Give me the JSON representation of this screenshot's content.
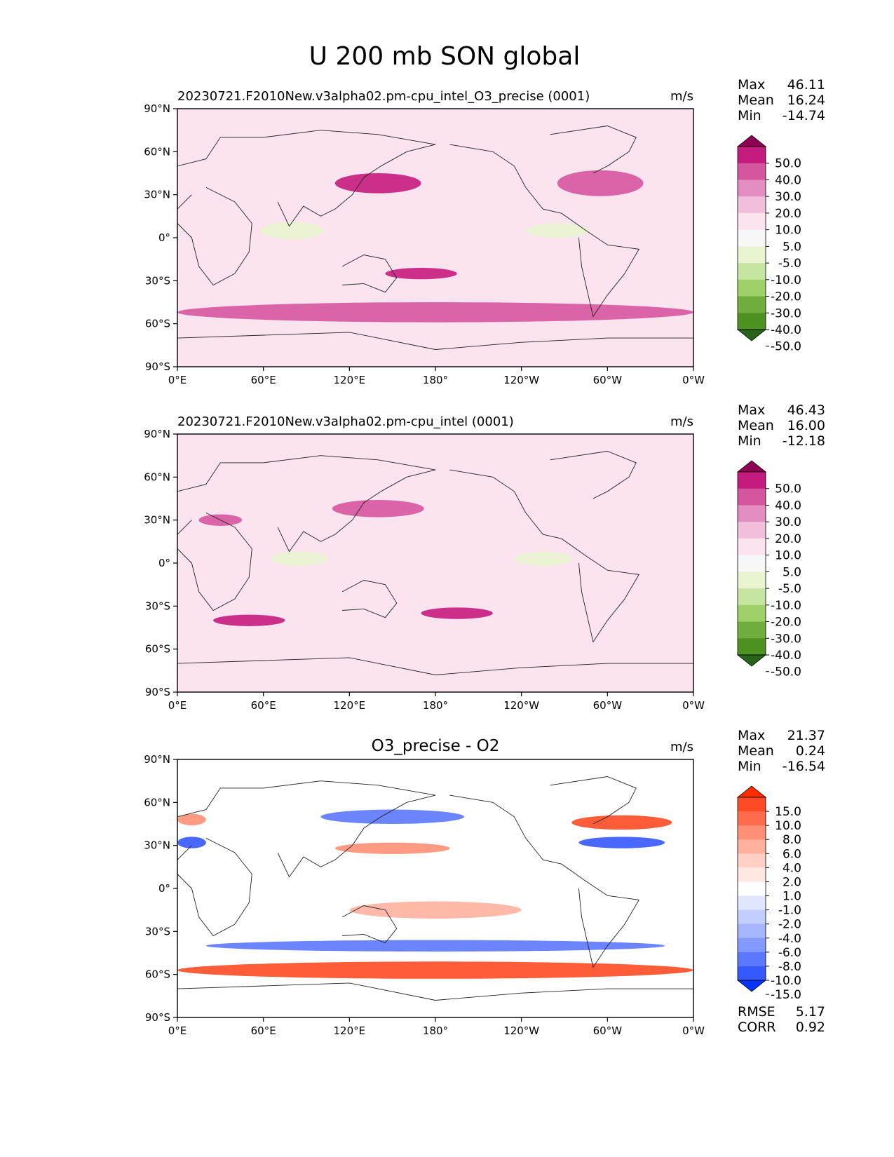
{
  "figure": {
    "title": "U 200 mb SON global"
  },
  "axes": {
    "x_ticks": [
      "0°E",
      "60°E",
      "120°E",
      "180°",
      "120°W",
      "60°W",
      "0°W"
    ],
    "y_ticks": [
      "90°N",
      "60°N",
      "30°N",
      "0°",
      "30°S",
      "60°S",
      "90°S"
    ]
  },
  "stat_labels": {
    "max": "Max",
    "mean": "Mean",
    "min": "Min",
    "rmse": "RMSE",
    "corr": "CORR"
  },
  "panels": [
    {
      "title": "20230721.F2010New.v3alpha02.pm-cpu_intel_O3_precise (0001)",
      "units": "m/s",
      "stats": {
        "max": "46.11",
        "mean": "16.24",
        "min": "-14.74"
      },
      "colorbar": {
        "labels": [
          "50.0",
          "40.0",
          "30.0",
          "20.0",
          "10.0",
          "5.0",
          "-5.0",
          "-10.0",
          "-20.0",
          "-30.0",
          "-40.0",
          "-50.0"
        ],
        "colors": [
          "#8e0152",
          "#c51b7d",
          "#d6559f",
          "#e48dc3",
          "#f1bfdc",
          "#fbe3ef",
          "#f7f7f7",
          "#e8f5d0",
          "#c5e5a0",
          "#9fd06a",
          "#6fae3c",
          "#4d9221",
          "#276419"
        ],
        "top_color": "#8e0152",
        "bottom_color": "#276419"
      },
      "map_base": "#fbe3ef"
    },
    {
      "title": "20230721.F2010New.v3alpha02.pm-cpu_intel (0001)",
      "units": "m/s",
      "stats": {
        "max": "46.43",
        "mean": "16.00",
        "min": "-12.18"
      },
      "colorbar": {
        "labels": [
          "50.0",
          "40.0",
          "30.0",
          "20.0",
          "10.0",
          "5.0",
          "-5.0",
          "-10.0",
          "-20.0",
          "-30.0",
          "-40.0",
          "-50.0"
        ],
        "colors": [
          "#8e0152",
          "#c51b7d",
          "#d6559f",
          "#e48dc3",
          "#f1bfdc",
          "#fbe3ef",
          "#f7f7f7",
          "#e8f5d0",
          "#c5e5a0",
          "#9fd06a",
          "#6fae3c",
          "#4d9221",
          "#276419"
        ],
        "top_color": "#8e0152",
        "bottom_color": "#276419"
      },
      "map_base": "#fbe3ef"
    },
    {
      "title": "O3_precise - O2",
      "units": "m/s",
      "stats": {
        "max": "21.37",
        "mean": "0.24",
        "min": "-16.54",
        "rmse": "5.17",
        "corr": "0.92"
      },
      "colorbar": {
        "labels": [
          "15.0",
          "10.0",
          "8.0",
          "6.0",
          "4.0",
          "2.0",
          "1.0",
          "-1.0",
          "-2.0",
          "-4.0",
          "-6.0",
          "-8.0",
          "-10.0",
          "-15.0"
        ],
        "colors": [
          "#ff2d00",
          "#ff4b25",
          "#ff6b4d",
          "#ff8f75",
          "#ffb19e",
          "#ffd0c3",
          "#ffe8e2",
          "#ffffff",
          "#e1e6ff",
          "#c3ceff",
          "#a5b5ff",
          "#8499ff",
          "#5c78ff",
          "#3558ff",
          "#0034ff"
        ],
        "top_color": "#ff2d00",
        "bottom_color": "#0034ff"
      },
      "map_base": "#ffffff"
    }
  ],
  "chart_data": [
    {
      "type": "heatmap",
      "title": "20230721.F2010New.v3alpha02.pm-cpu_intel_O3_precise (0001)",
      "units": "m/s",
      "xlim": [
        0,
        360
      ],
      "ylim": [
        -90,
        90
      ],
      "levels": [
        -50,
        -40,
        -30,
        -20,
        -10,
        -5,
        5,
        10,
        20,
        30,
        40,
        50
      ],
      "stats": {
        "max": 46.11,
        "mean": 16.24,
        "min": -14.74
      },
      "features": [
        {
          "lon": 140,
          "lat": 38,
          "rlon": 30,
          "rlat": 7,
          "value": 42
        },
        {
          "lon": 295,
          "lat": 38,
          "rlon": 30,
          "rlat": 9,
          "value": 35
        },
        {
          "lon": 170,
          "lat": -25,
          "rlon": 25,
          "rlat": 4,
          "value": 42
        },
        {
          "lon": 180,
          "lat": -52,
          "rlon": 180,
          "rlat": 7,
          "value": 33
        },
        {
          "lon": 80,
          "lat": 5,
          "rlon": 22,
          "rlat": 6,
          "value": -8
        },
        {
          "lon": 265,
          "lat": 5,
          "rlon": 22,
          "rlat": 5,
          "value": -6
        }
      ]
    },
    {
      "type": "heatmap",
      "title": "20230721.F2010New.v3alpha02.pm-cpu_intel (0001)",
      "units": "m/s",
      "xlim": [
        0,
        360
      ],
      "ylim": [
        -90,
        90
      ],
      "levels": [
        -50,
        -40,
        -30,
        -20,
        -10,
        -5,
        5,
        10,
        20,
        30,
        40,
        50
      ],
      "stats": {
        "max": 46.43,
        "mean": 16.0,
        "min": -12.18
      },
      "features": [
        {
          "lon": 140,
          "lat": 38,
          "rlon": 32,
          "rlat": 6,
          "value": 40
        },
        {
          "lon": 30,
          "lat": 30,
          "rlon": 15,
          "rlat": 4,
          "value": 38
        },
        {
          "lon": 50,
          "lat": -40,
          "rlon": 25,
          "rlat": 4,
          "value": 42
        },
        {
          "lon": 195,
          "lat": -35,
          "rlon": 25,
          "rlat": 4,
          "value": 42
        },
        {
          "lon": 85,
          "lat": 3,
          "rlon": 20,
          "rlat": 5,
          "value": -6
        },
        {
          "lon": 255,
          "lat": 3,
          "rlon": 20,
          "rlat": 5,
          "value": -6
        }
      ]
    },
    {
      "type": "heatmap",
      "title": "O3_precise - O2",
      "units": "m/s",
      "xlim": [
        0,
        360
      ],
      "ylim": [
        -90,
        90
      ],
      "levels": [
        -15,
        -10,
        -8,
        -6,
        -4,
        -2,
        -1,
        1,
        2,
        4,
        6,
        8,
        10,
        15
      ],
      "stats": {
        "max": 21.37,
        "mean": 0.24,
        "min": -16.54,
        "rmse": 5.17,
        "corr": 0.92
      },
      "features": [
        {
          "lon": 180,
          "lat": -57,
          "rlon": 180,
          "rlat": 6,
          "value": 14
        },
        {
          "lon": 180,
          "lat": -40,
          "rlon": 160,
          "rlat": 4,
          "value": -9
        },
        {
          "lon": 310,
          "lat": 46,
          "rlon": 35,
          "rlat": 5,
          "value": 13
        },
        {
          "lon": 310,
          "lat": 32,
          "rlon": 30,
          "rlat": 4,
          "value": -10
        },
        {
          "lon": 150,
          "lat": 50,
          "rlon": 50,
          "rlat": 5,
          "value": -8
        },
        {
          "lon": 150,
          "lat": 28,
          "rlon": 40,
          "rlat": 4,
          "value": 7
        },
        {
          "lon": 10,
          "lat": 32,
          "rlon": 10,
          "rlat": 4,
          "value": -11
        },
        {
          "lon": 10,
          "lat": 48,
          "rlon": 10,
          "rlat": 4,
          "value": 8
        },
        {
          "lon": 180,
          "lat": -15,
          "rlon": 60,
          "rlat": 6,
          "value": 5
        }
      ]
    }
  ]
}
